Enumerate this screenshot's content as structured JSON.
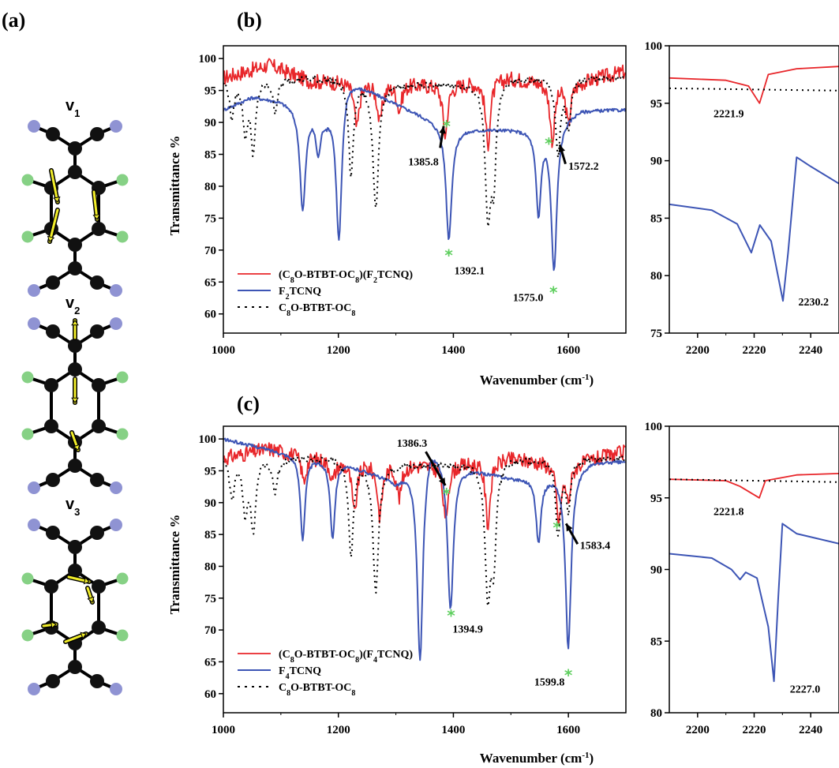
{
  "panels": {
    "a": "(a)",
    "b": "(b)",
    "c": "(c)"
  },
  "molecule_labels": [
    "v1",
    "v2",
    "v3"
  ],
  "colors": {
    "cocrystal": "#e8262a",
    "acceptor": "#3d55b5",
    "donor": "#000000",
    "star": "#5fcf5f",
    "carbon": "#111111",
    "nitrogen": "#8f93d3",
    "fluorine": "#86d185",
    "arrow_fill": "#f2ee2a"
  },
  "chart_data": [
    {
      "id": "b-main",
      "type": "line",
      "xlabel": "Wavenumber (cm-1)",
      "ylabel": "Transmittance %",
      "xlim": [
        1000,
        1700
      ],
      "ylim": [
        57,
        102
      ],
      "xticks": [
        1000,
        1200,
        1400,
        1600
      ],
      "yticks": [
        60,
        65,
        70,
        75,
        80,
        85,
        90,
        95,
        100
      ],
      "legend": {
        "placement": "bottom-left",
        "entries": [
          "(C8O-BTBT-OC8)(F2TCNQ)",
          "F2TCNQ",
          "C8O-BTBT-OC8"
        ]
      },
      "series": [
        {
          "name": "(C8O-BTBT-OC8)(F2TCNQ)",
          "style": "solid",
          "baseline": [
            [
              1000,
              97
            ],
            [
              1080,
              99
            ],
            [
              1150,
              96.5
            ],
            [
              1300,
              96
            ],
            [
              1400,
              96
            ],
            [
              1500,
              97
            ],
            [
              1600,
              96
            ],
            [
              1700,
              98
            ]
          ],
          "peaks": [
            [
              1232,
              7
            ],
            [
              1272,
              6
            ],
            [
              1306,
              4
            ],
            [
              1385.8,
              8
            ],
            [
              1460,
              10
            ],
            [
              1572.2,
              9
            ],
            [
              1600,
              6
            ]
          ]
        },
        {
          "name": "F2TCNQ",
          "style": "solid",
          "baseline": [
            [
              1000,
              92
            ],
            [
              1050,
              94
            ],
            [
              1100,
              93.5
            ],
            [
              1180,
              91.5
            ],
            [
              1215,
              97
            ],
            [
              1300,
              93
            ],
            [
              1400,
              89
            ],
            [
              1500,
              89
            ],
            [
              1550,
              89
            ],
            [
              1620,
              92
            ],
            [
              1700,
              92
            ]
          ],
          "peaks": [
            [
              1138,
              16
            ],
            [
              1165,
              6
            ],
            [
              1201,
              23
            ],
            [
              1392.1,
              17.5
            ],
            [
              1548,
              13
            ],
            [
              1575.0,
              23
            ]
          ]
        },
        {
          "name": "C8O-BTBT-OC8",
          "style": "dotted",
          "baseline": [
            [
              1000,
              97
            ],
            [
              1100,
              97
            ],
            [
              1200,
              97
            ],
            [
              1300,
              96
            ],
            [
              1400,
              96
            ],
            [
              1500,
              97
            ],
            [
              1600,
              97
            ],
            [
              1700,
              97
            ]
          ],
          "peaks": [
            [
              1015,
              6
            ],
            [
              1038,
              8
            ],
            [
              1052,
              11
            ],
            [
              1090,
              5
            ],
            [
              1222,
              15
            ],
            [
              1265,
              20
            ],
            [
              1460,
              20
            ],
            [
              1470,
              14
            ],
            [
              1582,
              12
            ],
            [
              1600,
              8
            ]
          ]
        }
      ],
      "annotations": [
        {
          "text": "1385.8",
          "x": 1385.8
        },
        {
          "text": "1392.1",
          "x": 1392.1
        },
        {
          "text": "1575.0",
          "x": 1575.0
        },
        {
          "text": "1572.2",
          "x": 1572.2
        }
      ]
    },
    {
      "id": "b-inset",
      "type": "line",
      "xlim": [
        2190,
        2250
      ],
      "ylim": [
        75,
        100
      ],
      "xticks": [
        2200,
        2220,
        2240
      ],
      "yticks": [
        75,
        80,
        85,
        90,
        95,
        100
      ],
      "series": [
        {
          "name": "(C8O-BTBT-OC8)(F2TCNQ)",
          "style": "solid",
          "points": [
            [
              2190,
              97.2
            ],
            [
              2210,
              97
            ],
            [
              2218,
              96.5
            ],
            [
              2221.9,
              95
            ],
            [
              2225,
              97.5
            ],
            [
              2235,
              98
            ],
            [
              2250,
              98.2
            ]
          ]
        },
        {
          "name": "F2TCNQ",
          "style": "solid",
          "points": [
            [
              2190,
              86.2
            ],
            [
              2205,
              85.7
            ],
            [
              2214,
              84.5
            ],
            [
              2219,
              82
            ],
            [
              2222,
              84.4
            ],
            [
              2226,
              83
            ],
            [
              2230.2,
              77.8
            ],
            [
              2232,
              82
            ],
            [
              2235,
              90.3
            ],
            [
              2240,
              89.5
            ],
            [
              2250,
              88
            ]
          ]
        },
        {
          "name": "C8O-BTBT-OC8",
          "style": "dotted",
          "points": [
            [
              2190,
              96.3
            ],
            [
              2250,
              96.1
            ]
          ]
        }
      ],
      "annotations": [
        {
          "text": "2221.9",
          "x": 2221.9
        },
        {
          "text": "2230.2",
          "x": 2230.2
        }
      ]
    },
    {
      "id": "c-main",
      "type": "line",
      "xlabel": "Wavenumber (cm-1)",
      "ylabel": "Transmittance %",
      "xlim": [
        1000,
        1700
      ],
      "ylim": [
        57,
        102
      ],
      "xticks": [
        1000,
        1200,
        1400,
        1600
      ],
      "yticks": [
        60,
        65,
        70,
        75,
        80,
        85,
        90,
        95,
        100
      ],
      "legend": {
        "placement": "bottom-left",
        "entries": [
          "(C8O-BTBT-OC8)(F4TCNQ)",
          "F4TCNQ",
          "C8O-BTBT-OC8"
        ]
      },
      "series": [
        {
          "name": "(C8O-BTBT-OC8)(F4TCNQ)",
          "style": "solid",
          "baseline": [
            [
              1000,
              97
            ],
            [
              1080,
              98.5
            ],
            [
              1200,
              96.5
            ],
            [
              1300,
              96
            ],
            [
              1400,
              96
            ],
            [
              1500,
              97
            ],
            [
              1600,
              96
            ],
            [
              1700,
              98
            ]
          ],
          "peaks": [
            [
              1140,
              4
            ],
            [
              1190,
              3
            ],
            [
              1228,
              8
            ],
            [
              1272,
              8
            ],
            [
              1306,
              5
            ],
            [
              1386.3,
              9
            ],
            [
              1460,
              10
            ],
            [
              1583.4,
              9
            ],
            [
              1600,
              5
            ]
          ]
        },
        {
          "name": "F4TCNQ",
          "style": "solid",
          "baseline": [
            [
              1000,
              100
            ],
            [
              1100,
              98
            ],
            [
              1200,
              96.5
            ],
            [
              1300,
              93.5
            ],
            [
              1330,
              96
            ],
            [
              1360,
              100
            ],
            [
              1400,
              96
            ],
            [
              1500,
              94
            ],
            [
              1560,
              94
            ],
            [
              1640,
              96.5
            ],
            [
              1700,
              96.5
            ]
          ],
          "peaks": [
            [
              1138,
              13
            ],
            [
              1190,
              12
            ],
            [
              1342,
              32
            ],
            [
              1394.9,
              23
            ],
            [
              1548,
              10
            ],
            [
              1599.8,
              28
            ]
          ]
        },
        {
          "name": "C8O-BTBT-OC8",
          "style": "dotted",
          "baseline": [
            [
              1000,
              97
            ],
            [
              1100,
              97
            ],
            [
              1200,
              97
            ],
            [
              1300,
              96
            ],
            [
              1400,
              96
            ],
            [
              1500,
              97
            ],
            [
              1600,
              97
            ],
            [
              1700,
              97
            ]
          ],
          "peaks": [
            [
              1015,
              6
            ],
            [
              1038,
              8
            ],
            [
              1052,
              11
            ],
            [
              1090,
              5
            ],
            [
              1222,
              15
            ],
            [
              1265,
              20
            ],
            [
              1460,
              20
            ],
            [
              1470,
              14
            ],
            [
              1582,
              12
            ],
            [
              1600,
              8
            ]
          ]
        }
      ],
      "annotations": [
        {
          "text": "1386.3",
          "x": 1386.3
        },
        {
          "text": "1394.9",
          "x": 1394.9
        },
        {
          "text": "1599.8",
          "x": 1599.8
        },
        {
          "text": "1583.4",
          "x": 1583.4
        }
      ]
    },
    {
      "id": "c-inset",
      "type": "line",
      "xlim": [
        2190,
        2250
      ],
      "ylim": [
        80,
        100
      ],
      "xticks": [
        2200,
        2220,
        2240
      ],
      "yticks": [
        80,
        85,
        90,
        95,
        100
      ],
      "series": [
        {
          "name": "(C8O-BTBT-OC8)(F4TCNQ)",
          "style": "solid",
          "points": [
            [
              2190,
              96.3
            ],
            [
              2210,
              96.2
            ],
            [
              2215,
              95.8
            ],
            [
              2221.8,
              95
            ],
            [
              2224,
              96.2
            ],
            [
              2235,
              96.6
            ],
            [
              2250,
              96.7
            ]
          ]
        },
        {
          "name": "F4TCNQ",
          "style": "solid",
          "points": [
            [
              2190,
              91.1
            ],
            [
              2205,
              90.8
            ],
            [
              2212,
              90
            ],
            [
              2215,
              89.3
            ],
            [
              2217,
              89.8
            ],
            [
              2221,
              89.4
            ],
            [
              2225,
              86
            ],
            [
              2227.0,
              82.2
            ],
            [
              2228.5,
              88
            ],
            [
              2230,
              93.2
            ],
            [
              2235,
              92.5
            ],
            [
              2250,
              91.8
            ]
          ]
        },
        {
          "name": "C8O-BTBT-OC8",
          "style": "dotted",
          "points": [
            [
              2190,
              96.3
            ],
            [
              2250,
              96.1
            ]
          ]
        }
      ],
      "annotations": [
        {
          "text": "2221.8",
          "x": 2221.8
        },
        {
          "text": "2227.0",
          "x": 2227.0
        }
      ]
    }
  ]
}
